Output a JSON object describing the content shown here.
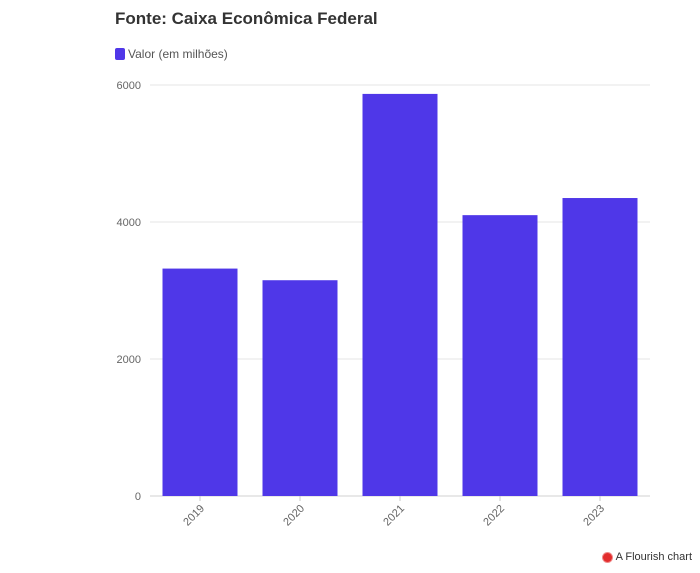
{
  "chart_data": {
    "type": "bar",
    "title": "Fonte: Caixa Econômica Federal",
    "categories": [
      "2019",
      "2020",
      "2021",
      "2022",
      "2023"
    ],
    "series": [
      {
        "name": "Valor (em milhões)",
        "values": [
          3320,
          3150,
          5870,
          4100,
          4350
        ],
        "color": "#4f37e8"
      }
    ],
    "yticks": [
      0,
      2000,
      4000,
      6000
    ],
    "ylim": [
      0,
      6000
    ],
    "grid": true,
    "legend": "top-left"
  },
  "footer": {
    "text": "A Flourish chart",
    "icon": "flourish-icon",
    "icon_color": "#e22d2d"
  }
}
